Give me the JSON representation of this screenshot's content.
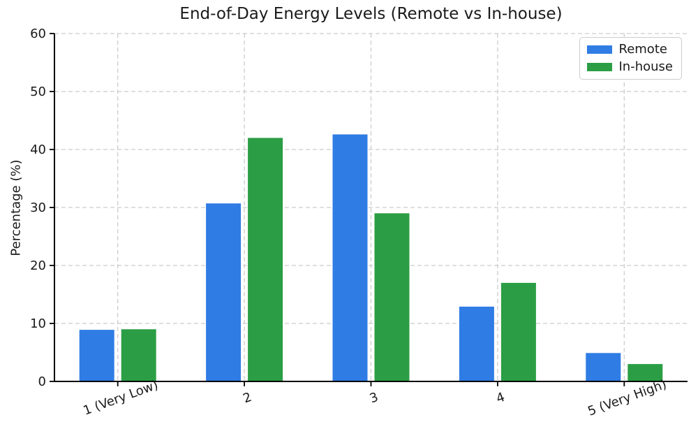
{
  "chart_data": {
    "type": "bar",
    "title": "End-of-Day Energy Levels (Remote vs In-house)",
    "xlabel": "",
    "ylabel": "Percentage (%)",
    "categories": [
      "1 (Very Low)",
      "2",
      "3",
      "4",
      "5 (Very High)"
    ],
    "series": [
      {
        "name": "Remote",
        "color": "#2F7CE4",
        "values": [
          8.9,
          30.7,
          42.6,
          12.9,
          4.9
        ]
      },
      {
        "name": "In-house",
        "color": "#2B9E45",
        "values": [
          9,
          42,
          29,
          17,
          3
        ]
      }
    ],
    "ylim": [
      0,
      60
    ],
    "yticks": [
      0,
      10,
      20,
      30,
      40,
      50,
      60
    ],
    "grid": "both-axes dashed",
    "legend_position": "upper right",
    "x_tick_rotation_deg": 20
  },
  "colors": {
    "background": "#ffffff",
    "grid": "#cccccc",
    "axis": "#000000",
    "text": "#1a1a1a",
    "remote": "#2F7CE4",
    "inhouse": "#2B9E45"
  }
}
